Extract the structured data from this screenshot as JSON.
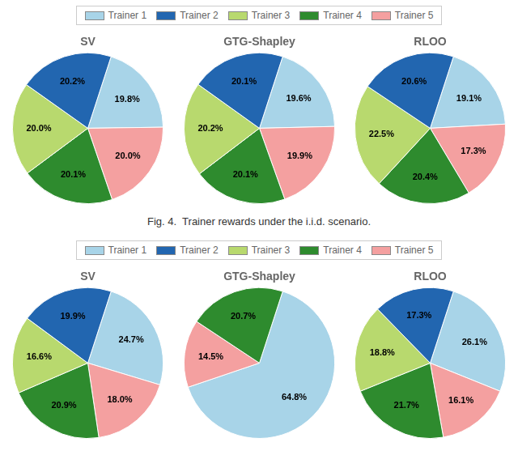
{
  "chart_data": [
    {
      "type": "pie",
      "title": "SV",
      "categories": [
        "Trainer 1",
        "Trainer 5",
        "Trainer 4",
        "Trainer 3",
        "Trainer 2"
      ],
      "values": [
        19.8,
        20.0,
        20.1,
        20.0,
        20.2
      ],
      "value_labels": [
        "19.8%",
        "20.0%",
        "20.1%",
        "20.0%",
        "20.2%"
      ],
      "colors": [
        "#a8d4e8",
        "#f4a0a0",
        "#2e8b2e",
        "#b8d96e",
        "#2266b0"
      ],
      "data_labels": true,
      "legend": "top"
    },
    {
      "type": "pie",
      "title": "GTG-Shapley",
      "categories": [
        "Trainer 1",
        "Trainer 5",
        "Trainer 4",
        "Trainer 3",
        "Trainer 2"
      ],
      "values": [
        19.6,
        19.9,
        20.1,
        20.2,
        20.1
      ],
      "value_labels": [
        "19.6%",
        "19.9%",
        "20.1%",
        "20.2%",
        "20.1%"
      ],
      "colors": [
        "#a8d4e8",
        "#f4a0a0",
        "#2e8b2e",
        "#b8d96e",
        "#2266b0"
      ],
      "data_labels": true,
      "legend": "top"
    },
    {
      "type": "pie",
      "title": "RLOO",
      "categories": [
        "Trainer 1",
        "Trainer 5",
        "Trainer 4",
        "Trainer 3",
        "Trainer 2"
      ],
      "values": [
        19.1,
        17.3,
        20.4,
        22.5,
        20.6
      ],
      "value_labels": [
        "19.1%",
        "17.3%",
        "20.4%",
        "22.5%",
        "20.6%"
      ],
      "colors": [
        "#a8d4e8",
        "#f4a0a0",
        "#2e8b2e",
        "#b8d96e",
        "#2266b0"
      ],
      "data_labels": true,
      "legend": "top"
    },
    {
      "type": "pie",
      "title": "SV",
      "categories": [
        "Trainer 1",
        "Trainer 5",
        "Trainer 4",
        "Trainer 3",
        "Trainer 2"
      ],
      "values": [
        24.7,
        18.0,
        20.9,
        16.6,
        19.9
      ],
      "value_labels": [
        "24.7%",
        "18.0%",
        "20.9%",
        "16.6%",
        "19.9%"
      ],
      "colors": [
        "#a8d4e8",
        "#f4a0a0",
        "#2e8b2e",
        "#b8d96e",
        "#2266b0"
      ],
      "data_labels": true,
      "legend": "top"
    },
    {
      "type": "pie",
      "title": "GTG-Shapley",
      "categories": [
        "Trainer 1",
        "Trainer 5",
        "Trainer 4"
      ],
      "values": [
        64.8,
        14.5,
        20.7
      ],
      "value_labels": [
        "64.8%",
        "14.5%",
        "20.7%"
      ],
      "colors": [
        "#a8d4e8",
        "#f4a0a0",
        "#2e8b2e"
      ],
      "data_labels": true,
      "legend": "top"
    },
    {
      "type": "pie",
      "title": "RLOO",
      "categories": [
        "Trainer 1",
        "Trainer 5",
        "Trainer 4",
        "Trainer 3",
        "Trainer 2"
      ],
      "values": [
        26.1,
        16.1,
        21.7,
        18.8,
        17.3
      ],
      "value_labels": [
        "26.1%",
        "16.1%",
        "21.7%",
        "18.8%",
        "17.3%"
      ],
      "colors": [
        "#a8d4e8",
        "#f4a0a0",
        "#2e8b2e",
        "#b8d96e",
        "#2266b0"
      ],
      "data_labels": true,
      "legend": "top"
    }
  ],
  "annotations": [
    "Fig. 4.  Trainer rewards under the i.i.d. scenario."
  ]
}
